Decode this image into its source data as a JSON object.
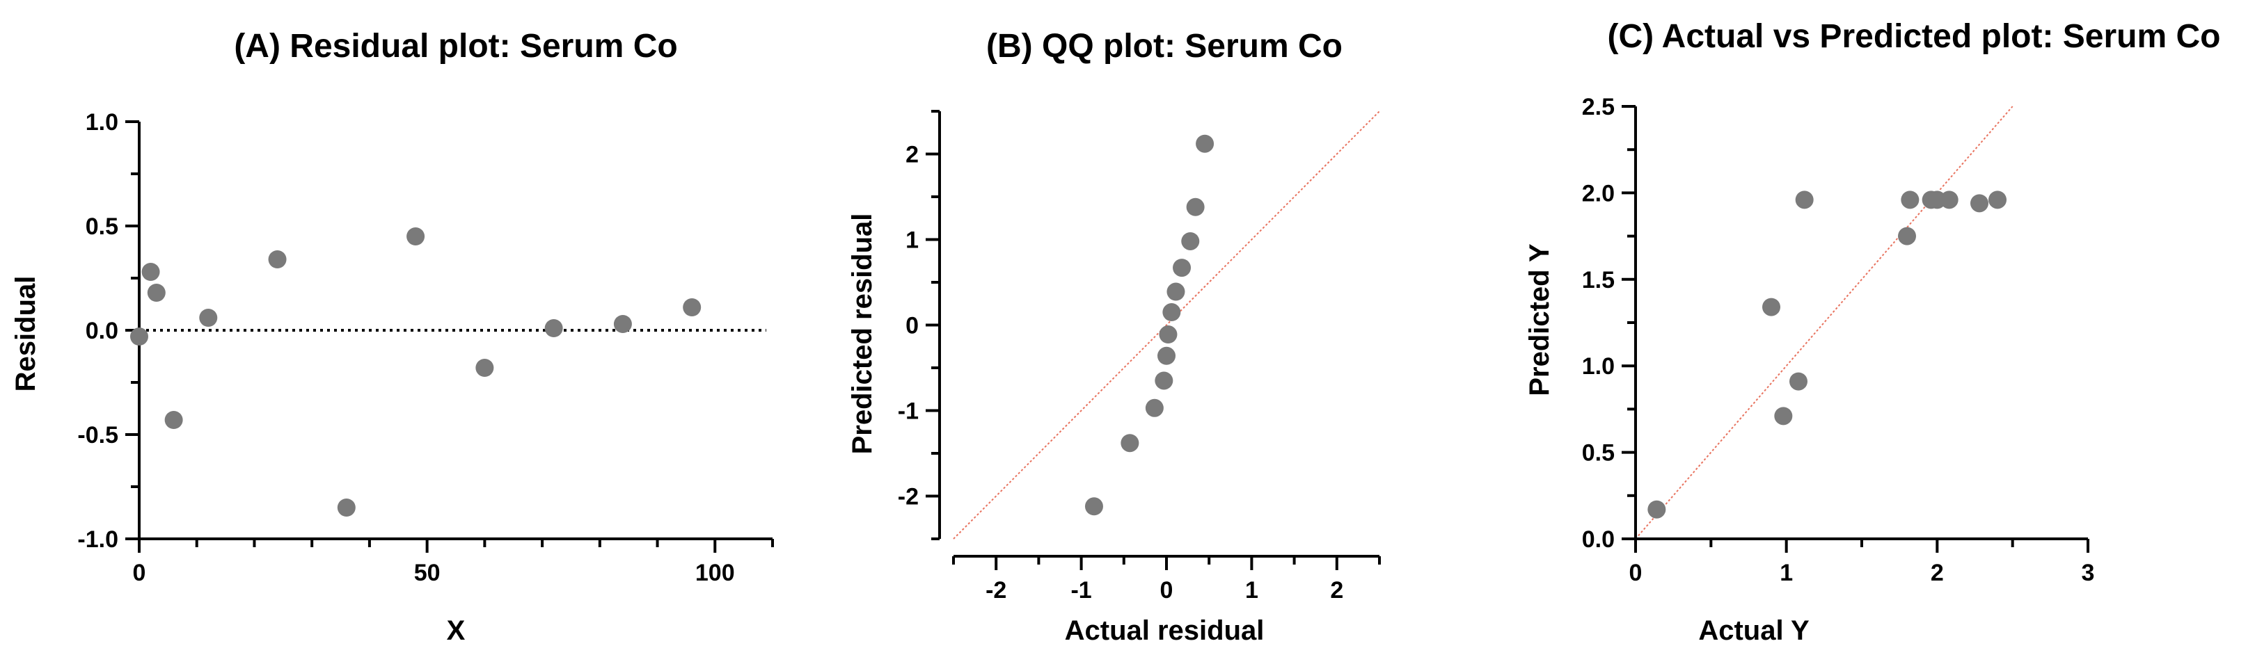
{
  "colors": {
    "point": "#7a7a7a",
    "reference_line": "#e8735f",
    "axis": "#000000"
  },
  "chart_data": [
    {
      "type": "scatter",
      "title": "(A) Residual plot: Serum Co",
      "xlabel": "X",
      "ylabel": "Residual",
      "xlim": [
        0,
        110
      ],
      "ylim": [
        -1.0,
        1.0
      ],
      "xticks": [
        "0",
        "50",
        "100"
      ],
      "yticks": [
        "-1.0",
        "-0.5",
        "0.0",
        "0.5",
        "1.0"
      ],
      "reference": "y = 0 (dotted)",
      "points": [
        {
          "x": 0,
          "y": -0.03
        },
        {
          "x": 2,
          "y": 0.28
        },
        {
          "x": 3,
          "y": 0.18
        },
        {
          "x": 6,
          "y": -0.43
        },
        {
          "x": 12,
          "y": 0.06
        },
        {
          "x": 24,
          "y": 0.34
        },
        {
          "x": 36,
          "y": -0.85
        },
        {
          "x": 48,
          "y": 0.45
        },
        {
          "x": 60,
          "y": -0.18
        },
        {
          "x": 72,
          "y": 0.01
        },
        {
          "x": 84,
          "y": 0.03
        },
        {
          "x": 96,
          "y": 0.11
        }
      ]
    },
    {
      "type": "scatter",
      "title": "(B) QQ plot: Serum Co",
      "xlabel": "Actual residual",
      "ylabel": "Predicted residual",
      "xlim": [
        -2.5,
        2.5
      ],
      "ylim": [
        -2.5,
        2.5
      ],
      "xticks": [
        "-2",
        "-1",
        "0",
        "1",
        "2"
      ],
      "yticks": [
        "-2",
        "-1",
        "0",
        "1",
        "2"
      ],
      "reference": "y = x (dotted)",
      "points": [
        {
          "x": -0.85,
          "y": -2.12
        },
        {
          "x": -0.43,
          "y": -1.38
        },
        {
          "x": -0.14,
          "y": -0.97
        },
        {
          "x": -0.03,
          "y": -0.65
        },
        {
          "x": 0.0,
          "y": -0.36
        },
        {
          "x": 0.02,
          "y": -0.11
        },
        {
          "x": 0.06,
          "y": 0.15
        },
        {
          "x": 0.11,
          "y": 0.39
        },
        {
          "x": 0.18,
          "y": 0.67
        },
        {
          "x": 0.28,
          "y": 0.98
        },
        {
          "x": 0.34,
          "y": 1.38
        },
        {
          "x": 0.45,
          "y": 2.12
        }
      ]
    },
    {
      "type": "scatter",
      "title": "(C) Actual vs Predicted plot: Serum Co",
      "xlabel": "Actual Y",
      "ylabel": "Predicted Y",
      "xlim": [
        0,
        3
      ],
      "ylim": [
        0,
        2.5
      ],
      "xticks": [
        "0",
        "1",
        "2",
        "3"
      ],
      "yticks": [
        "0.0",
        "0.5",
        "1.0",
        "1.5",
        "2.0",
        "2.5"
      ],
      "reference": "y = x (dotted)",
      "points": [
        {
          "x": 0.14,
          "y": 0.17
        },
        {
          "x": 0.9,
          "y": 1.34
        },
        {
          "x": 0.98,
          "y": 0.71
        },
        {
          "x": 1.08,
          "y": 0.91
        },
        {
          "x": 1.12,
          "y": 1.96
        },
        {
          "x": 1.8,
          "y": 1.75
        },
        {
          "x": 1.82,
          "y": 1.96
        },
        {
          "x": 1.96,
          "y": 1.96
        },
        {
          "x": 2.0,
          "y": 1.96
        },
        {
          "x": 2.08,
          "y": 1.96
        },
        {
          "x": 2.28,
          "y": 1.94
        },
        {
          "x": 2.4,
          "y": 1.96
        }
      ]
    }
  ]
}
